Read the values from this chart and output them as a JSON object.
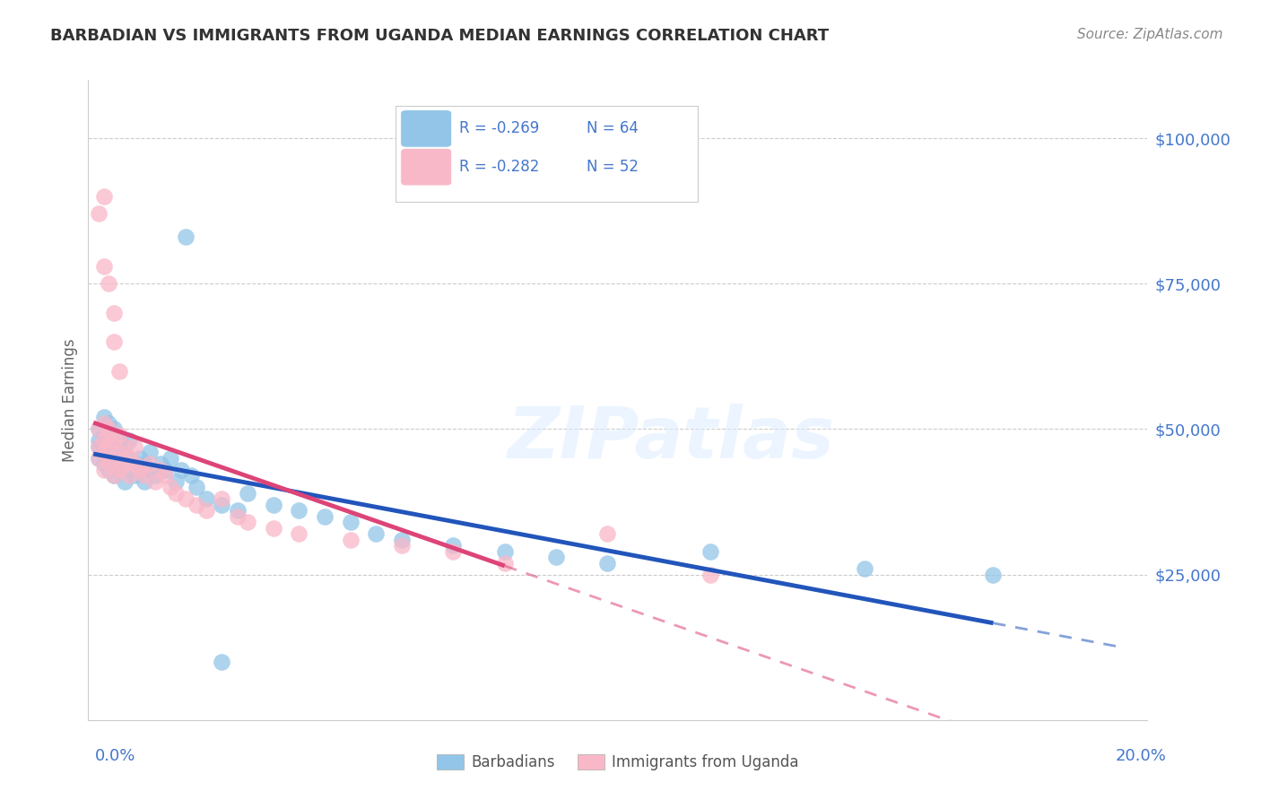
{
  "title": "BARBADIAN VS IMMIGRANTS FROM UGANDA MEDIAN EARNINGS CORRELATION CHART",
  "source": "Source: ZipAtlas.com",
  "ylabel": "Median Earnings",
  "legend_label1_r": "R = -0.269",
  "legend_label1_n": "N = 64",
  "legend_label2_r": "R = -0.282",
  "legend_label2_n": "N = 52",
  "legend_footer1": "Barbadians",
  "legend_footer2": "Immigrants from Uganda",
  "watermark": "ZIPatlas",
  "color_blue": "#92C5E8",
  "color_pink": "#F9B8C8",
  "color_blue_line": "#2255BB",
  "color_pink_line": "#DD4477",
  "color_axis_labels": "#4477CC",
  "color_title": "#333333",
  "color_source": "#888888",
  "xlim_min": -0.001,
  "xlim_max": 0.205,
  "ylim_min": 0,
  "ylim_max": 110000,
  "yticks": [
    25000,
    50000,
    75000,
    100000
  ],
  "ytick_labels": [
    "$25,000",
    "$50,000",
    "$75,000",
    "$100,000"
  ],
  "blue_x": [
    0.001,
    0.001,
    0.001,
    0.001,
    0.002,
    0.002,
    0.002,
    0.002,
    0.002,
    0.003,
    0.003,
    0.003,
    0.003,
    0.003,
    0.003,
    0.004,
    0.004,
    0.004,
    0.004,
    0.005,
    0.005,
    0.005,
    0.005,
    0.006,
    0.006,
    0.006,
    0.007,
    0.007,
    0.007,
    0.008,
    0.008,
    0.009,
    0.009,
    0.01,
    0.01,
    0.011,
    0.011,
    0.012,
    0.013,
    0.014,
    0.015,
    0.016,
    0.017,
    0.019,
    0.02,
    0.022,
    0.025,
    0.028,
    0.03,
    0.035,
    0.04,
    0.045,
    0.05,
    0.055,
    0.06,
    0.07,
    0.08,
    0.09,
    0.1,
    0.12,
    0.15,
    0.175,
    0.018,
    0.025
  ],
  "blue_y": [
    47000,
    50000,
    45000,
    48000,
    46000,
    49000,
    52000,
    44000,
    47000,
    50000,
    45000,
    48000,
    43000,
    46000,
    51000,
    44000,
    47000,
    50000,
    42000,
    45000,
    48000,
    43000,
    46000,
    44000,
    47000,
    41000,
    45000,
    43000,
    48000,
    44000,
    42000,
    45000,
    43000,
    44000,
    41000,
    43000,
    46000,
    42000,
    44000,
    43000,
    45000,
    41000,
    43000,
    42000,
    40000,
    38000,
    37000,
    36000,
    39000,
    37000,
    36000,
    35000,
    34000,
    32000,
    31000,
    30000,
    29000,
    28000,
    27000,
    29000,
    26000,
    25000,
    83000,
    10000
  ],
  "pink_x": [
    0.001,
    0.001,
    0.001,
    0.002,
    0.002,
    0.002,
    0.002,
    0.003,
    0.003,
    0.003,
    0.003,
    0.004,
    0.004,
    0.004,
    0.005,
    0.005,
    0.005,
    0.006,
    0.006,
    0.007,
    0.007,
    0.008,
    0.008,
    0.009,
    0.01,
    0.011,
    0.012,
    0.013,
    0.014,
    0.015,
    0.016,
    0.018,
    0.02,
    0.022,
    0.025,
    0.028,
    0.03,
    0.035,
    0.04,
    0.05,
    0.06,
    0.07,
    0.08,
    0.1,
    0.12,
    0.001,
    0.002,
    0.002,
    0.003,
    0.004,
    0.004,
    0.005
  ],
  "pink_y": [
    47000,
    50000,
    45000,
    48000,
    46000,
    51000,
    43000,
    50000,
    47000,
    44000,
    49000,
    45000,
    48000,
    42000,
    46000,
    49000,
    43000,
    47000,
    44000,
    45000,
    42000,
    44000,
    47000,
    43000,
    42000,
    44000,
    41000,
    43000,
    42000,
    40000,
    39000,
    38000,
    37000,
    36000,
    38000,
    35000,
    34000,
    33000,
    32000,
    31000,
    30000,
    29000,
    27000,
    32000,
    25000,
    87000,
    90000,
    78000,
    75000,
    70000,
    65000,
    60000
  ]
}
